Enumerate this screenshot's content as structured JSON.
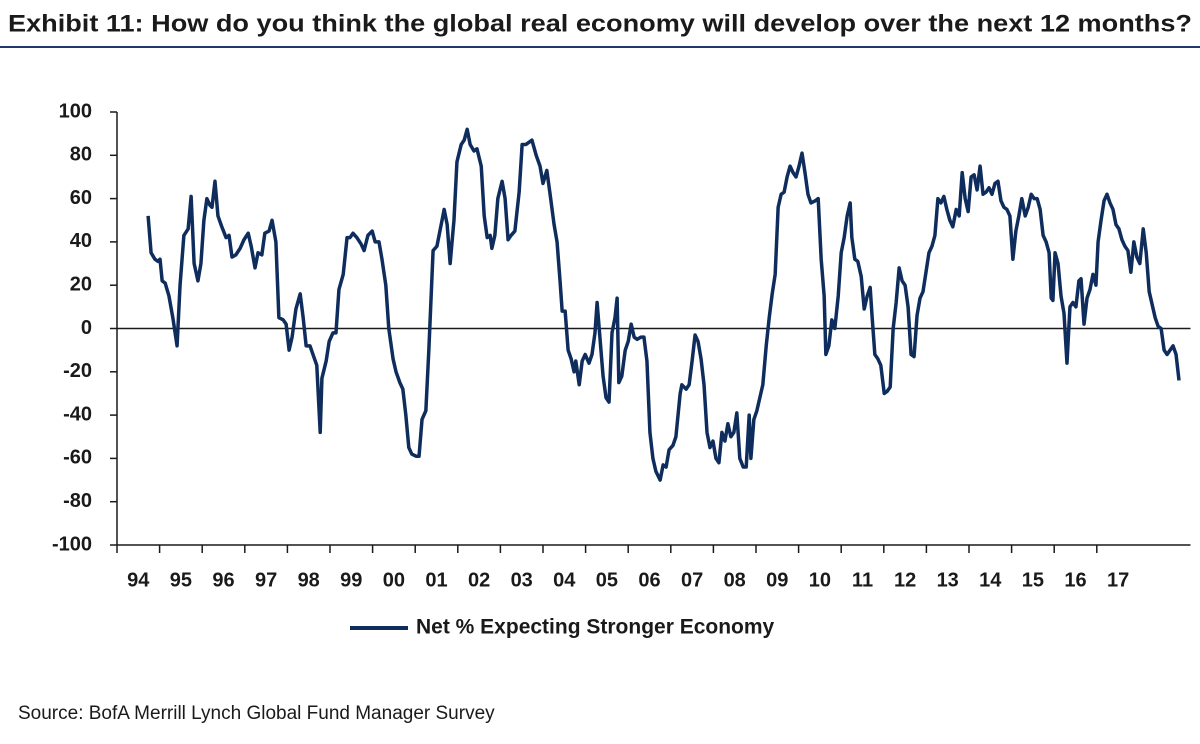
{
  "chart_data": {
    "type": "line",
    "title": "Exhibit 11: How do you think the global real economy will develop over the next 12 months?",
    "source": "Source: BofA Merrill Lynch Global Fund Manager Survey",
    "x": [
      1994.73,
      1994.8,
      1994.89,
      1994.96,
      1995.01,
      1995.06,
      1995.13,
      1995.22,
      1995.31,
      1995.41,
      1995.48,
      1995.57,
      1995.67,
      1995.74,
      1995.81,
      1995.9,
      1995.97,
      1996.04,
      1996.11,
      1996.18,
      1996.23,
      1996.3,
      1996.37,
      1996.46,
      1996.56,
      1996.63,
      1996.7,
      1996.79,
      1996.89,
      1996.98,
      1997.08,
      1997.15,
      1997.24,
      1997.31,
      1997.4,
      1997.47,
      1997.57,
      1997.64,
      1997.73,
      1997.8,
      1997.9,
      1997.97,
      1998.04,
      1998.11,
      1998.2,
      1998.3,
      1998.37,
      1998.44,
      1998.53,
      1998.6,
      1998.69,
      1998.77,
      1998.81,
      1998.91,
      1998.98,
      1999.07,
      1999.14,
      1999.21,
      1999.31,
      1999.4,
      1999.47,
      1999.54,
      1999.63,
      1999.73,
      1999.8,
      1999.89,
      1999.99,
      2000.06,
      2000.15,
      2000.22,
      2000.31,
      2000.38,
      2000.48,
      2000.55,
      2000.64,
      2000.71,
      2000.78,
      2000.85,
      2000.92,
      2001.02,
      2001.09,
      2001.16,
      2001.25,
      2001.32,
      2001.42,
      2001.51,
      2001.58,
      2001.68,
      2001.75,
      2001.82,
      2001.91,
      2001.98,
      2002.08,
      2002.15,
      2002.22,
      2002.29,
      2002.38,
      2002.45,
      2002.55,
      2002.62,
      2002.69,
      2002.76,
      2002.8,
      2002.87,
      2002.94,
      2003.04,
      2003.11,
      2003.18,
      2003.25,
      2003.34,
      2003.44,
      2003.51,
      2003.6,
      2003.67,
      2003.74,
      2003.84,
      2003.93,
      2004.0,
      2004.09,
      2004.16,
      2004.26,
      2004.33,
      2004.4,
      2004.45,
      2004.52,
      2004.59,
      2004.66,
      2004.73,
      2004.77,
      2004.85,
      2004.92,
      2004.99,
      2005.08,
      2005.15,
      2005.22,
      2005.27,
      2005.34,
      2005.41,
      2005.48,
      2005.55,
      2005.62,
      2005.69,
      2005.74,
      2005.78,
      2005.85,
      2005.93,
      2006.0,
      2006.07,
      2006.14,
      2006.21,
      2006.3,
      2006.37,
      2006.44,
      2006.51,
      2006.58,
      2006.65,
      2006.75,
      2006.82,
      2006.89,
      2006.96,
      2007.05,
      2007.12,
      2007.22,
      2007.26,
      2007.36,
      2007.43,
      2007.5,
      2007.57,
      2007.64,
      2007.71,
      2007.78,
      2007.85,
      2007.92,
      2007.99,
      2008.06,
      2008.13,
      2008.2,
      2008.27,
      2008.34,
      2008.41,
      2008.48,
      2008.55,
      2008.62,
      2008.7,
      2008.77,
      2008.84,
      2008.88,
      2008.95,
      2009.02,
      2009.09,
      2009.16,
      2009.24,
      2009.31,
      2009.38,
      2009.45,
      2009.52,
      2009.59,
      2009.66,
      2009.73,
      2009.8,
      2009.87,
      2009.94,
      2010.01,
      2010.08,
      2010.15,
      2010.22,
      2010.29,
      2010.39,
      2010.46,
      2010.53,
      2010.6,
      2010.64,
      2010.71,
      2010.78,
      2010.85,
      2010.93,
      2011.0,
      2011.07,
      2011.14,
      2011.21,
      2011.25,
      2011.32,
      2011.39,
      2011.47,
      2011.54,
      2011.61,
      2011.68,
      2011.72,
      2011.79,
      2011.86,
      2011.93,
      2012.01,
      2012.08,
      2012.15,
      2012.22,
      2012.29,
      2012.36,
      2012.43,
      2012.5,
      2012.57,
      2012.64,
      2012.71,
      2012.78,
      2012.85,
      2012.92,
      2012.99,
      2013.06,
      2013.13,
      2013.2,
      2013.27,
      2013.34,
      2013.41,
      2013.48,
      2013.55,
      2013.62,
      2013.7,
      2013.77,
      2013.84,
      2013.91,
      2013.98,
      2014.05,
      2014.12,
      2014.19,
      2014.26,
      2014.33,
      2014.4,
      2014.47,
      2014.54,
      2014.61,
      2014.68,
      2014.75,
      2014.82,
      2014.89,
      2014.96,
      2015.03,
      2015.1,
      2015.17,
      2015.24,
      2015.32,
      2015.39,
      2015.46,
      2015.53,
      2015.6,
      2015.67,
      2015.74,
      2015.81,
      2015.88,
      2015.93,
      2015.97,
      2016.02,
      2016.09,
      2016.16,
      2016.23,
      2016.3,
      2016.37,
      2016.44,
      2016.51,
      2016.58,
      2016.63,
      2016.7,
      2016.77,
      2016.84,
      2016.91,
      2016.98,
      2017.03,
      2017.1,
      2017.17,
      2017.24,
      2017.31,
      2017.38,
      2017.45,
      2017.52,
      2017.59,
      2017.66,
      2017.73,
      2017.8,
      2017.87,
      2017.94,
      2018.01,
      2018.09,
      2018.16,
      2018.23,
      2018.3,
      2018.37,
      2018.44,
      2018.51,
      2018.58,
      2018.65,
      2018.72,
      2018.79,
      2018.86,
      2018.93
    ],
    "series": [
      {
        "name": "Net % Expecting Stronger Economy",
        "color": "#0f2d5c",
        "values": [
          52,
          35,
          32,
          31,
          32,
          22,
          21,
          15,
          5,
          -8,
          20,
          43,
          46,
          61,
          30,
          22,
          30,
          50,
          60,
          57,
          56,
          68,
          52,
          47,
          42,
          43,
          33,
          34,
          37,
          41,
          44,
          38,
          28,
          35,
          34,
          44,
          45,
          50,
          40,
          5,
          4,
          2,
          -10,
          -4,
          9,
          16,
          5,
          -8,
          -8,
          -12,
          -17,
          -48,
          -23,
          -15,
          -6,
          -2,
          -2,
          18,
          25,
          42,
          42,
          44,
          42,
          39,
          36,
          43,
          45,
          40,
          40,
          32,
          20,
          0,
          -14,
          -20,
          -25,
          -28,
          -40,
          -55,
          -58,
          -59,
          -59,
          -42,
          -38,
          -10,
          36,
          38,
          45,
          55,
          48,
          30,
          50,
          77,
          85,
          87,
          92,
          85,
          82,
          83,
          75,
          52,
          42,
          43,
          37,
          43,
          60,
          68,
          60,
          41,
          43,
          45,
          63,
          85,
          85,
          86,
          87,
          80,
          75,
          67,
          73,
          63,
          48,
          40,
          22,
          8,
          8,
          -10,
          -14,
          -20,
          -15,
          -26,
          -15,
          -12,
          -16,
          -12,
          -2,
          12,
          -5,
          -22,
          -32,
          -34,
          -2,
          5,
          14,
          -25,
          -22,
          -10,
          -6,
          2,
          -4,
          -5,
          -4,
          -4,
          -15,
          -48,
          -60,
          -66,
          -70,
          -63,
          -64,
          -56,
          -54,
          -50,
          -30,
          -26,
          -28,
          -26,
          -15,
          -3,
          -6,
          -14,
          -26,
          -48,
          -55,
          -52,
          -60,
          -62,
          -48,
          -52,
          -44,
          -50,
          -48,
          -39,
          -60,
          -64,
          -64,
          -40,
          -60,
          -42,
          -38,
          -32,
          -26,
          -8,
          5,
          16,
          25,
          56,
          62,
          63,
          70,
          75,
          72,
          70,
          75,
          81,
          72,
          62,
          58,
          59,
          60,
          32,
          15,
          -12,
          -8,
          4,
          0,
          15,
          35,
          42,
          52,
          58,
          42,
          32,
          31,
          24,
          9,
          15,
          19,
          7,
          -12,
          -14,
          -17,
          -30,
          -29,
          -27,
          0,
          12,
          28,
          22,
          20,
          10,
          -12,
          -13,
          6,
          14,
          17,
          26,
          35,
          38,
          43,
          60,
          58,
          61,
          55,
          50,
          47,
          55,
          52,
          72,
          60,
          54,
          70,
          71,
          64,
          75,
          62,
          63,
          65,
          62,
          67,
          68,
          59,
          56,
          55,
          52,
          32,
          45,
          52,
          60,
          52,
          56,
          62,
          60,
          60,
          55,
          43,
          40,
          35,
          14,
          13,
          35,
          30,
          15,
          7,
          -16,
          10,
          12,
          10,
          22,
          23,
          2,
          14,
          18,
          25,
          20,
          40,
          50,
          59,
          62,
          58,
          55,
          48,
          46,
          41,
          38,
          36,
          26,
          40,
          33,
          30,
          46,
          35,
          17,
          11,
          5,
          1,
          0,
          -10,
          -12,
          -10,
          -8,
          -12,
          -24
        ]
      }
    ],
    "xlim": [
      1994,
      2019.2
    ],
    "xticks": [
      {
        "value": 1994,
        "label": "94"
      },
      {
        "value": 1995,
        "label": "95"
      },
      {
        "value": 1996,
        "label": "96"
      },
      {
        "value": 1997,
        "label": "97"
      },
      {
        "value": 1998,
        "label": "98"
      },
      {
        "value": 1999,
        "label": "99"
      },
      {
        "value": 2000,
        "label": "00"
      },
      {
        "value": 2001,
        "label": "01"
      },
      {
        "value": 2002,
        "label": "02"
      },
      {
        "value": 2003,
        "label": "03"
      },
      {
        "value": 2004,
        "label": "04"
      },
      {
        "value": 2005,
        "label": "05"
      },
      {
        "value": 2006,
        "label": "06"
      },
      {
        "value": 2007,
        "label": "07"
      },
      {
        "value": 2008,
        "label": "08"
      },
      {
        "value": 2009,
        "label": "09"
      },
      {
        "value": 2010,
        "label": "10"
      },
      {
        "value": 2011,
        "label": "11"
      },
      {
        "value": 2012,
        "label": "12"
      },
      {
        "value": 2013,
        "label": "13"
      },
      {
        "value": 2014,
        "label": "14"
      },
      {
        "value": 2015,
        "label": "15"
      },
      {
        "value": 2016,
        "label": "16"
      },
      {
        "value": 2017,
        "label": "17"
      }
    ],
    "ylim": [
      -100,
      100
    ],
    "yticks": [
      -100,
      -80,
      -60,
      -40,
      -20,
      0,
      20,
      40,
      60,
      80,
      100
    ],
    "legend": "bottom"
  }
}
